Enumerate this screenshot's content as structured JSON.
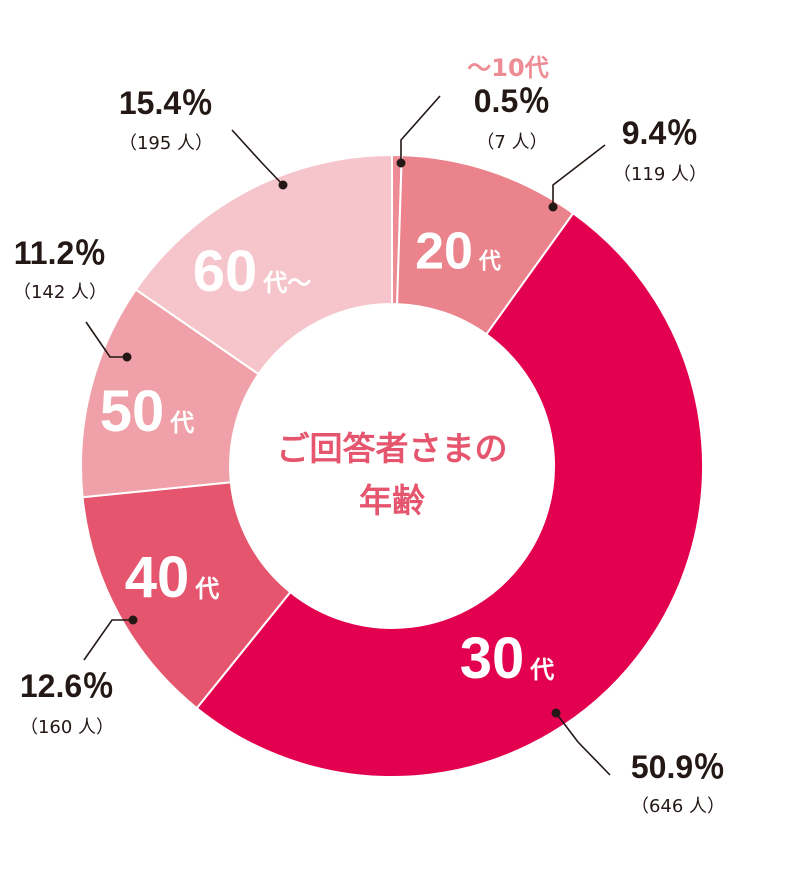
{
  "chart_data": {
    "type": "pie",
    "title_lines": [
      "ご回答者さまの",
      "年齢"
    ],
    "slices": [
      {
        "category": "～10代",
        "percent": 0.5,
        "count_text": "（7 人）",
        "percent_text": "0.5％",
        "color": "#EE8C96"
      },
      {
        "category": "20代",
        "label_num": "20",
        "label_suffix": "代",
        "percent": 9.4,
        "count_text": "（119 人）",
        "percent_text": "9.4％",
        "color": "#EA838B"
      },
      {
        "category": "30代",
        "label_num": "30",
        "label_suffix": "代",
        "percent": 50.9,
        "count_text": "（646 人）",
        "percent_text": "50.9％",
        "color": "#E2004F"
      },
      {
        "category": "40代",
        "label_num": "40",
        "label_suffix": "代",
        "percent": 12.6,
        "count_text": "（160 人）",
        "percent_text": "12.6％",
        "color": "#E5566E"
      },
      {
        "category": "50代",
        "label_num": "50",
        "label_suffix": "代",
        "percent": 11.2,
        "count_text": "（142 人）",
        "percent_text": "11.2％",
        "color": "#EFA0A8"
      },
      {
        "category": "60代～",
        "label_num": "60",
        "label_suffix": "代～",
        "percent": 15.4,
        "count_text": "（195 人）",
        "percent_text": "15.4％",
        "color": "#F5C5CB"
      }
    ],
    "teen_label_color": "#EE8C96",
    "center_text_color": "#E5566E"
  }
}
